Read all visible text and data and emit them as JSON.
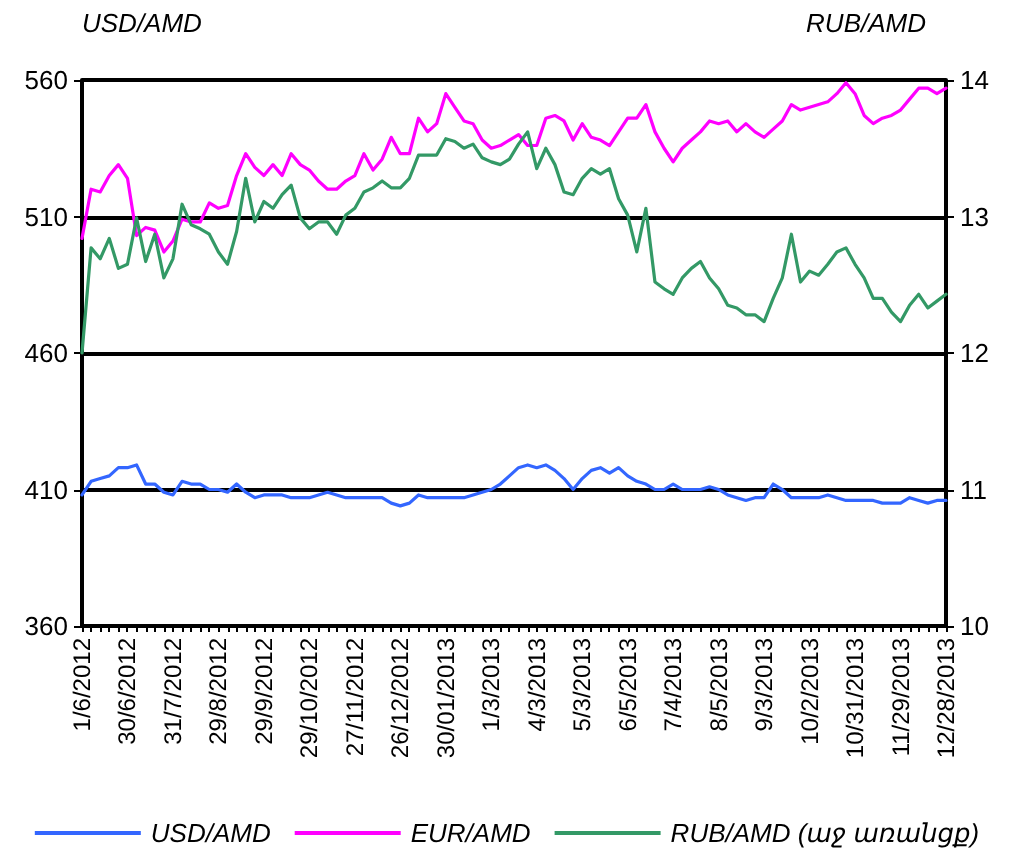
{
  "chart_data": {
    "type": "line",
    "ylabel": "USD/AMD",
    "y2label": "RUB/AMD",
    "categories": [
      "1/6/2012",
      null,
      null,
      null,
      null,
      "30/6/2012",
      null,
      null,
      null,
      null,
      "31/7/2012",
      null,
      null,
      null,
      null,
      "29/8/2012",
      null,
      null,
      null,
      null,
      "29/9/2012",
      null,
      null,
      null,
      null,
      "29/10/2012",
      null,
      null,
      null,
      null,
      "27/11/2012",
      null,
      null,
      null,
      null,
      "26/12/2012",
      null,
      null,
      null,
      null,
      "30/01/2013",
      null,
      null,
      null,
      null,
      "1/3/2013",
      null,
      null,
      null,
      null,
      "4/3/2013",
      null,
      null,
      null,
      null,
      "5/3/2013",
      null,
      null,
      null,
      null,
      "6/5/2013",
      null,
      null,
      null,
      null,
      "7/4/2013",
      null,
      null,
      null,
      null,
      "8/5/2013",
      null,
      null,
      null,
      null,
      "9/3/2013",
      null,
      null,
      null,
      null,
      "10/2/2013",
      null,
      null,
      null,
      null,
      "10/31/2013",
      null,
      null,
      null,
      null,
      "11/29/2013",
      null,
      null,
      null,
      null,
      "12/28/2013"
    ],
    "ylim": [
      360,
      560
    ],
    "yticks": [
      360,
      410,
      460,
      510,
      560
    ],
    "y2lim": [
      10,
      14
    ],
    "y2ticks": [
      10,
      11,
      12,
      13,
      14
    ],
    "grid": "y",
    "legend": "bottom",
    "marker": "none",
    "line_style": "solid",
    "series": [
      {
        "name": "USD/AMD",
        "color": "#3366ff",
        "values": [
          408,
          413,
          414,
          415,
          418,
          418,
          419,
          412,
          412,
          409,
          408,
          413,
          412,
          412,
          410,
          410,
          409,
          412,
          409,
          407,
          408,
          408,
          408,
          407,
          407,
          407,
          408,
          409,
          408,
          407,
          407,
          407,
          407,
          407,
          405,
          404,
          405,
          408,
          407,
          407,
          407,
          407,
          407,
          408,
          409,
          410,
          412,
          415,
          418,
          419,
          418,
          419,
          417,
          414,
          410,
          414,
          417,
          418,
          416,
          418,
          415,
          413,
          412,
          410,
          410,
          412,
          410,
          410,
          410,
          411,
          410,
          408,
          407,
          406,
          407,
          407,
          412,
          410,
          407,
          407,
          407,
          407,
          408,
          407,
          406,
          406,
          406,
          406,
          405,
          405,
          405,
          407,
          406,
          405,
          406,
          406
        ]
      },
      {
        "name": "EUR/AMD",
        "color": "#ff00ff",
        "values": [
          502,
          520,
          519,
          525,
          529,
          524,
          503,
          506,
          505,
          497,
          501,
          509,
          508,
          508,
          515,
          513,
          514,
          525,
          533,
          528,
          525,
          529,
          525,
          533,
          529,
          527,
          523,
          520,
          520,
          523,
          525,
          533,
          527,
          531,
          539,
          533,
          533,
          546,
          541,
          544,
          555,
          550,
          545,
          544,
          538,
          535,
          536,
          538,
          540,
          536,
          536,
          546,
          547,
          545,
          538,
          544,
          539,
          538,
          536,
          541,
          546,
          546,
          551,
          541,
          535,
          530,
          535,
          538,
          541,
          545,
          544,
          545,
          541,
          544,
          541,
          539,
          542,
          545,
          551,
          549,
          550,
          551,
          552,
          555,
          559,
          555,
          547,
          544,
          546,
          547,
          549,
          553,
          557,
          557,
          555,
          557
        ]
      },
      {
        "name": "RUB/AMD (աջ առանցք)",
        "color": "#339966",
        "axis": "y2",
        "values": [
          12.0,
          12.77,
          12.69,
          12.84,
          12.62,
          12.65,
          12.99,
          12.67,
          12.87,
          12.55,
          12.69,
          13.09,
          12.94,
          12.91,
          12.87,
          12.74,
          12.65,
          12.89,
          13.28,
          12.96,
          13.11,
          13.06,
          13.16,
          13.23,
          12.99,
          12.91,
          12.96,
          12.96,
          12.87,
          13.01,
          13.06,
          13.18,
          13.21,
          13.26,
          13.21,
          13.21,
          13.28,
          13.45,
          13.45,
          13.45,
          13.57,
          13.55,
          13.5,
          13.53,
          13.43,
          13.4,
          13.38,
          13.42,
          13.53,
          13.62,
          13.35,
          13.5,
          13.38,
          13.18,
          13.16,
          13.28,
          13.35,
          13.31,
          13.35,
          13.13,
          13.01,
          12.74,
          13.06,
          12.52,
          12.47,
          12.43,
          12.55,
          12.62,
          12.67,
          12.55,
          12.47,
          12.35,
          12.33,
          12.28,
          12.28,
          12.23,
          12.4,
          12.55,
          12.87,
          12.52,
          12.6,
          12.57,
          12.65,
          12.74,
          12.77,
          12.65,
          12.55,
          12.4,
          12.4,
          12.3,
          12.23,
          12.35,
          12.43,
          12.33,
          12.38,
          12.43
        ]
      }
    ]
  }
}
